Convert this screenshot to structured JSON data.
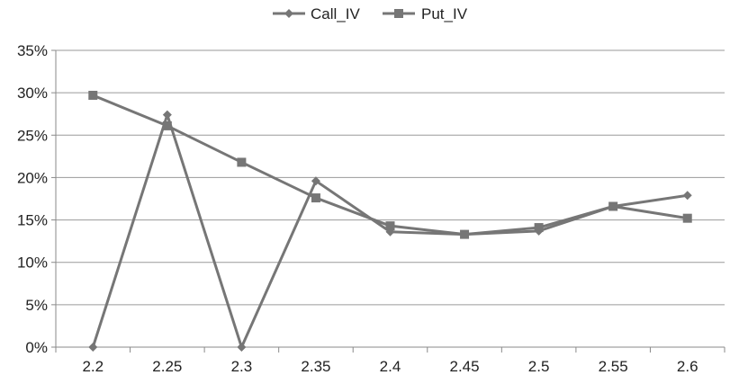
{
  "chart_data": {
    "type": "line",
    "title": "",
    "xlabel": "",
    "ylabel": "",
    "categories": [
      "2.2",
      "2.25",
      "2.3",
      "2.35",
      "2.4",
      "2.45",
      "2.5",
      "2.55",
      "2.6"
    ],
    "ylim": [
      0,
      35
    ],
    "yticks": [
      0,
      5,
      10,
      15,
      20,
      25,
      30,
      35
    ],
    "ytick_labels": [
      "0%",
      "5%",
      "10%",
      "15%",
      "20%",
      "25%",
      "30%",
      "35%"
    ],
    "grid": "horizontal",
    "legend_position": "top",
    "line_color": "#767676",
    "series": [
      {
        "name": "Call_IV",
        "marker": "diamond",
        "values": [
          0,
          27.4,
          0,
          19.6,
          13.6,
          13.3,
          13.7,
          16.6,
          17.9
        ]
      },
      {
        "name": "Put_IV",
        "marker": "square",
        "values": [
          29.7,
          26.1,
          21.8,
          17.6,
          14.3,
          13.3,
          14.1,
          16.6,
          15.2
        ]
      }
    ]
  }
}
